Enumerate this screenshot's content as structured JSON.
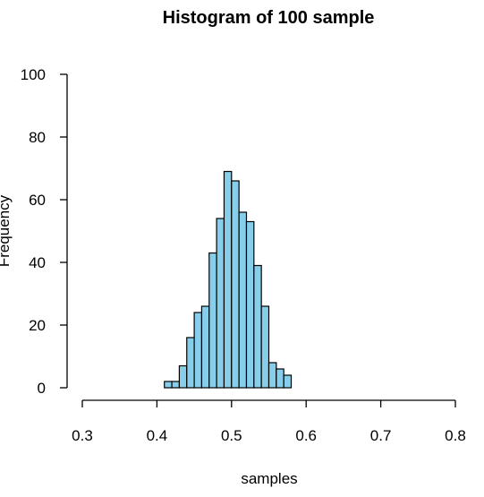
{
  "chart_data": {
    "type": "histogram",
    "title": "Histogram of 100 sample",
    "xlabel": "samples",
    "ylabel": "Frequency",
    "xlim": [
      0.3,
      0.8
    ],
    "ylim": [
      0,
      100
    ],
    "x_ticks": [
      "0.3",
      "0.4",
      "0.5",
      "0.6",
      "0.7",
      "0.8"
    ],
    "y_ticks": [
      "0",
      "20",
      "40",
      "60",
      "80",
      "100"
    ],
    "bin_width": 0.01,
    "bin_starts": [
      0.41,
      0.42,
      0.43,
      0.44,
      0.45,
      0.46,
      0.47,
      0.48,
      0.49,
      0.5,
      0.51,
      0.52,
      0.53,
      0.54,
      0.55,
      0.56,
      0.57
    ],
    "counts": [
      2,
      2,
      7,
      16,
      24,
      26,
      43,
      54,
      69,
      66,
      56,
      53,
      39,
      26,
      8,
      6,
      4
    ],
    "bar_fill": "#87ceeb",
    "bar_stroke": "#000000",
    "grid": false
  }
}
